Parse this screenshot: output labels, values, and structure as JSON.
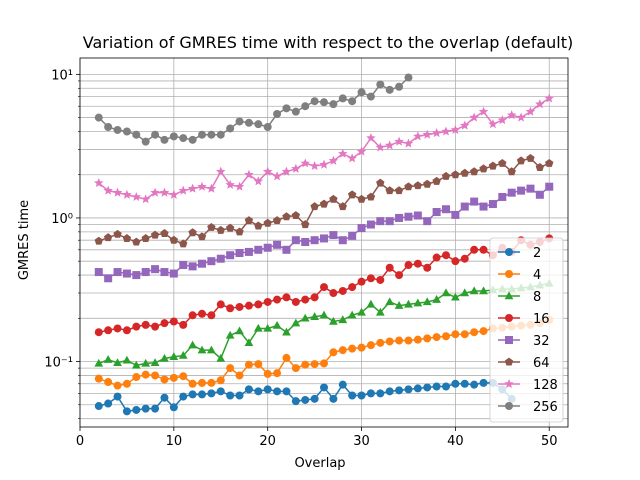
{
  "chart_data": {
    "type": "line",
    "title": "Variation of GMRES time with respect to the overlap (default)",
    "xlabel": "Overlap",
    "ylabel": "GMRES time",
    "xlim": [
      0,
      52
    ],
    "ylim": [
      0.035,
      13
    ],
    "yscale": "log",
    "grid": true,
    "legend_loc": "lower-right",
    "x_ticks": [
      0,
      10,
      20,
      30,
      40,
      50
    ],
    "y_ticks": [
      {
        "value": 0.1,
        "label": "10⁻¹"
      },
      {
        "value": 1,
        "label": "10⁰"
      },
      {
        "value": 10,
        "label": "10¹"
      }
    ],
    "series": [
      {
        "name": "2",
        "color": "#1f77b4",
        "marker": "circle",
        "x": [
          2,
          3,
          4,
          5,
          6,
          7,
          8,
          9,
          10,
          11,
          12,
          13,
          14,
          15,
          16,
          17,
          18,
          19,
          20,
          21,
          22,
          23,
          24,
          25,
          26,
          27,
          28,
          29,
          30,
          31,
          32,
          33,
          34,
          35,
          36,
          37,
          38,
          39,
          40,
          41,
          42,
          43,
          44,
          45,
          46
        ],
        "y": [
          0.049,
          0.051,
          0.057,
          0.045,
          0.046,
          0.047,
          0.047,
          0.056,
          0.048,
          0.057,
          0.059,
          0.059,
          0.06,
          0.062,
          0.058,
          0.058,
          0.064,
          0.062,
          0.064,
          0.062,
          0.062,
          0.053,
          0.054,
          0.055,
          0.066,
          0.055,
          0.069,
          0.058,
          0.058,
          0.06,
          0.06,
          0.062,
          0.063,
          0.064,
          0.065,
          0.066,
          0.067,
          0.067,
          0.07,
          0.07,
          0.069,
          0.071,
          0.071,
          0.064,
          0.055
        ]
      },
      {
        "name": "4",
        "color": "#ff7f0e",
        "marker": "circle",
        "x": [
          2,
          3,
          4,
          5,
          6,
          7,
          8,
          9,
          10,
          11,
          12,
          13,
          14,
          15,
          16,
          17,
          18,
          19,
          20,
          21,
          22,
          23,
          24,
          25,
          26,
          27,
          28,
          29,
          30,
          31,
          32,
          33,
          34,
          35,
          36,
          37,
          38,
          39,
          40,
          41,
          42,
          43,
          44,
          45,
          46,
          47,
          48,
          49,
          50
        ],
        "y": [
          0.076,
          0.072,
          0.068,
          0.07,
          0.078,
          0.081,
          0.08,
          0.075,
          0.077,
          0.079,
          0.07,
          0.071,
          0.071,
          0.074,
          0.09,
          0.08,
          0.095,
          0.096,
          0.082,
          0.083,
          0.106,
          0.09,
          0.095,
          0.096,
          0.097,
          0.116,
          0.12,
          0.123,
          0.125,
          0.13,
          0.135,
          0.138,
          0.14,
          0.14,
          0.142,
          0.145,
          0.148,
          0.15,
          0.155,
          0.155,
          0.16,
          0.163,
          0.17,
          0.172,
          0.175,
          0.178,
          0.18,
          0.185,
          0.195
        ]
      },
      {
        "name": "8",
        "color": "#2ca02c",
        "marker": "triangle",
        "x": [
          2,
          3,
          4,
          5,
          6,
          7,
          8,
          9,
          10,
          11,
          12,
          13,
          14,
          15,
          16,
          17,
          18,
          19,
          20,
          21,
          22,
          23,
          24,
          25,
          26,
          27,
          28,
          29,
          30,
          31,
          32,
          33,
          34,
          35,
          36,
          37,
          38,
          39,
          40,
          41,
          42,
          43,
          44,
          45,
          46,
          47,
          48,
          49,
          50
        ],
        "y": [
          0.097,
          0.103,
          0.098,
          0.102,
          0.094,
          0.097,
          0.098,
          0.105,
          0.108,
          0.11,
          0.13,
          0.12,
          0.12,
          0.105,
          0.152,
          0.163,
          0.135,
          0.17,
          0.17,
          0.178,
          0.16,
          0.185,
          0.2,
          0.205,
          0.21,
          0.19,
          0.195,
          0.21,
          0.22,
          0.25,
          0.22,
          0.26,
          0.245,
          0.25,
          0.255,
          0.26,
          0.27,
          0.3,
          0.28,
          0.3,
          0.31,
          0.31,
          0.315,
          0.32,
          0.32,
          0.325,
          0.33,
          0.34,
          0.35
        ]
      },
      {
        "name": "16",
        "color": "#d62728",
        "marker": "circle",
        "x": [
          2,
          3,
          4,
          5,
          6,
          7,
          8,
          9,
          10,
          11,
          12,
          13,
          14,
          15,
          16,
          17,
          18,
          19,
          20,
          21,
          22,
          23,
          24,
          25,
          26,
          27,
          28,
          29,
          30,
          31,
          32,
          33,
          34,
          35,
          36,
          37,
          38,
          39,
          40,
          41,
          42,
          43,
          44,
          45,
          46,
          47,
          48,
          49,
          50
        ],
        "y": [
          0.16,
          0.165,
          0.17,
          0.165,
          0.175,
          0.18,
          0.175,
          0.185,
          0.19,
          0.18,
          0.21,
          0.215,
          0.21,
          0.25,
          0.235,
          0.24,
          0.245,
          0.25,
          0.26,
          0.27,
          0.28,
          0.26,
          0.27,
          0.28,
          0.33,
          0.3,
          0.31,
          0.33,
          0.36,
          0.38,
          0.37,
          0.45,
          0.4,
          0.47,
          0.48,
          0.45,
          0.53,
          0.55,
          0.5,
          0.52,
          0.6,
          0.6,
          0.55,
          0.62,
          0.58,
          0.7,
          0.65,
          0.68,
          0.72
        ]
      },
      {
        "name": "32",
        "color": "#9467bd",
        "marker": "square",
        "x": [
          2,
          3,
          4,
          5,
          6,
          7,
          8,
          9,
          10,
          11,
          12,
          13,
          14,
          15,
          16,
          17,
          18,
          19,
          20,
          21,
          22,
          23,
          24,
          25,
          26,
          27,
          28,
          29,
          30,
          31,
          32,
          33,
          34,
          35,
          36,
          37,
          38,
          39,
          40,
          41,
          42,
          43,
          44,
          45,
          46,
          47,
          48,
          49,
          50
        ],
        "y": [
          0.42,
          0.38,
          0.42,
          0.41,
          0.4,
          0.42,
          0.44,
          0.42,
          0.41,
          0.47,
          0.46,
          0.48,
          0.5,
          0.52,
          0.55,
          0.57,
          0.58,
          0.6,
          0.62,
          0.65,
          0.6,
          0.7,
          0.68,
          0.7,
          0.72,
          0.76,
          0.7,
          0.75,
          0.85,
          0.9,
          0.95,
          0.95,
          1.0,
          1.02,
          1.04,
          0.95,
          1.1,
          1.15,
          1.05,
          1.2,
          1.3,
          1.2,
          1.25,
          1.4,
          1.5,
          1.55,
          1.6,
          1.45,
          1.65
        ]
      },
      {
        "name": "64",
        "color": "#8c564b",
        "marker": "pentagon",
        "x": [
          2,
          3,
          4,
          5,
          6,
          7,
          8,
          9,
          10,
          11,
          12,
          13,
          14,
          15,
          16,
          17,
          18,
          19,
          20,
          21,
          22,
          23,
          24,
          25,
          26,
          27,
          28,
          29,
          30,
          31,
          32,
          33,
          34,
          35,
          36,
          37,
          38,
          39,
          40,
          41,
          42,
          43,
          44,
          45,
          46,
          47,
          48,
          49,
          50
        ],
        "y": [
          0.69,
          0.73,
          0.77,
          0.72,
          0.68,
          0.72,
          0.76,
          0.78,
          0.7,
          0.66,
          0.79,
          0.74,
          0.86,
          0.82,
          0.85,
          0.8,
          0.96,
          0.88,
          0.92,
          0.96,
          1.02,
          1.04,
          0.9,
          1.2,
          1.25,
          1.35,
          1.2,
          1.45,
          1.35,
          1.4,
          1.75,
          1.55,
          1.55,
          1.65,
          1.68,
          1.72,
          1.8,
          1.95,
          2.0,
          2.05,
          2.1,
          2.2,
          2.3,
          2.4,
          2.1,
          2.5,
          2.6,
          2.25,
          2.4
        ]
      },
      {
        "name": "128",
        "color": "#e377c2",
        "marker": "star",
        "x": [
          2,
          3,
          4,
          5,
          6,
          7,
          8,
          9,
          10,
          11,
          12,
          13,
          14,
          15,
          16,
          17,
          18,
          19,
          20,
          21,
          22,
          23,
          24,
          25,
          26,
          27,
          28,
          29,
          30,
          31,
          32,
          33,
          34,
          35,
          36,
          37,
          38,
          39,
          40,
          41,
          42,
          43,
          44,
          45,
          46,
          47,
          48,
          49,
          50
        ],
        "y": [
          1.75,
          1.55,
          1.5,
          1.45,
          1.4,
          1.35,
          1.5,
          1.5,
          1.45,
          1.55,
          1.6,
          1.65,
          1.6,
          2.1,
          1.7,
          1.65,
          2.0,
          1.8,
          2.1,
          1.95,
          2.1,
          2.2,
          2.4,
          2.3,
          2.35,
          2.5,
          2.8,
          2.6,
          2.9,
          3.6,
          3.1,
          3.2,
          3.4,
          3.3,
          3.7,
          3.8,
          3.9,
          4.0,
          4.1,
          4.4,
          5.0,
          5.5,
          4.5,
          4.8,
          5.2,
          5.0,
          5.5,
          6.2,
          6.8
        ]
      },
      {
        "name": "256",
        "color": "#7f7f7f",
        "marker": "circle",
        "x": [
          2,
          3,
          4,
          5,
          6,
          7,
          8,
          9,
          10,
          11,
          12,
          13,
          14,
          15,
          16,
          17,
          18,
          19,
          20,
          21,
          22,
          23,
          24,
          25,
          26,
          27,
          28,
          29,
          30,
          31,
          32,
          33,
          34,
          35
        ],
        "y": [
          5.0,
          4.3,
          4.1,
          4.0,
          3.8,
          3.4,
          3.8,
          3.5,
          3.7,
          3.6,
          3.5,
          3.8,
          3.8,
          3.8,
          4.2,
          4.7,
          4.6,
          4.5,
          4.3,
          5.3,
          5.8,
          5.5,
          6.0,
          6.5,
          6.4,
          6.2,
          6.8,
          6.5,
          7.5,
          7.0,
          8.5,
          7.8,
          8.2,
          9.5
        ]
      }
    ]
  }
}
